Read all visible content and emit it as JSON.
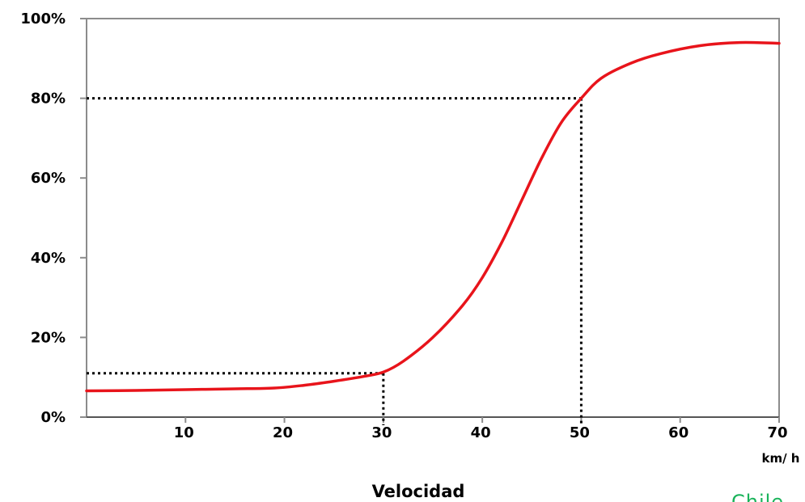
{
  "chart_data": {
    "type": "line",
    "xlabel": "Velocidad",
    "x_unit": "km/ h",
    "xlim": [
      0,
      70
    ],
    "ylim": [
      0,
      100
    ],
    "x_ticks": [
      10,
      20,
      30,
      40,
      50,
      60,
      70
    ],
    "y_ticks": [
      0,
      20,
      40,
      60,
      80,
      100
    ],
    "y_tick_labels": [
      "0%",
      "20%",
      "40%",
      "60%",
      "80%",
      "100%"
    ],
    "grid": false,
    "legend": "none",
    "series": [
      {
        "color": "#e8141b",
        "x": [
          0,
          5,
          10,
          15,
          19,
          22,
          25,
          28,
          30,
          32,
          35,
          38,
          40,
          42,
          44,
          46,
          48,
          50,
          52,
          55,
          58,
          62,
          66,
          70
        ],
        "y": [
          6.6,
          6.7,
          6.9,
          7.1,
          7.3,
          8.0,
          9.0,
          10.2,
          11.3,
          14.0,
          20.0,
          28.0,
          35.0,
          44.0,
          54.5,
          65.0,
          74.0,
          80.0,
          85.0,
          88.8,
          91.2,
          93.2,
          94.0,
          93.8
        ]
      }
    ],
    "reference_lines": [
      {
        "x": 30,
        "y": 11
      },
      {
        "x": 50,
        "y": 80
      }
    ]
  },
  "watermark": "Chile"
}
